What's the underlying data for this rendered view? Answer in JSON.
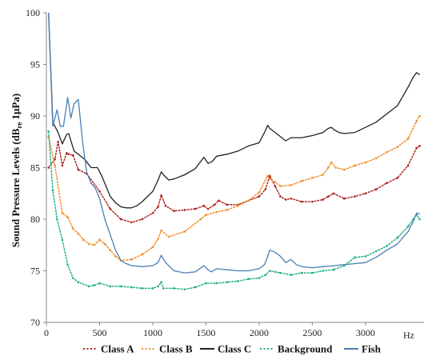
{
  "chart_data": {
    "type": "line",
    "title": "",
    "xlabel": "Hz",
    "ylabel": "Sound Pressure Levels (dB",
    "ylabel_sub": "re",
    "ylabel_tail": " 1μPa)",
    "xlim": [
      0,
      3550
    ],
    "ylim": [
      70,
      100
    ],
    "xticks": [
      0,
      500,
      1000,
      1500,
      2000,
      2500,
      3000
    ],
    "yticks": [
      70,
      75,
      80,
      85,
      90,
      95,
      100
    ],
    "grid": false,
    "legend_position": "bottom",
    "series": [
      {
        "name": "Class A",
        "color": "#b22222",
        "style": "dotted",
        "x": [
          20,
          80,
          110,
          150,
          190,
          210,
          250,
          300,
          380,
          500,
          600,
          700,
          800,
          900,
          1000,
          1050,
          1080,
          1120,
          1200,
          1300,
          1400,
          1480,
          1520,
          1580,
          1620,
          1700,
          1800,
          1900,
          2000,
          2060,
          2100,
          2150,
          2200,
          2250,
          2300,
          2400,
          2500,
          2600,
          2650,
          2700,
          2800,
          2900,
          3000,
          3100,
          3200,
          3300,
          3400,
          3480,
          3510
        ],
        "y": [
          85.0,
          85.8,
          87.5,
          85.2,
          86.4,
          86.3,
          86.2,
          84.8,
          84.4,
          82.7,
          81.0,
          80.0,
          79.7,
          80.0,
          80.6,
          81.2,
          82.3,
          81.3,
          80.8,
          80.9,
          81.0,
          81.3,
          81.0,
          81.4,
          81.8,
          81.4,
          81.4,
          81.8,
          82.2,
          82.9,
          84.2,
          83.2,
          82.2,
          81.9,
          82.0,
          81.7,
          81.7,
          81.9,
          82.2,
          82.5,
          82.0,
          82.2,
          82.5,
          82.9,
          83.5,
          84.0,
          85.2,
          86.9,
          87.1
        ]
      },
      {
        "name": "Class B",
        "color": "#f28c28",
        "style": "dotted",
        "x": [
          20,
          80,
          150,
          200,
          250,
          300,
          350,
          400,
          450,
          500,
          550,
          600,
          650,
          700,
          800,
          900,
          1000,
          1050,
          1080,
          1150,
          1300,
          1450,
          1500,
          1600,
          1700,
          1800,
          1900,
          2000,
          2080,
          2100,
          2150,
          2200,
          2300,
          2400,
          2500,
          2600,
          2650,
          2680,
          2720,
          2800,
          2900,
          3000,
          3100,
          3200,
          3300,
          3400,
          3480,
          3510
        ],
        "y": [
          88.0,
          85.2,
          80.6,
          80.2,
          79.1,
          78.6,
          78.0,
          77.6,
          77.5,
          78.0,
          77.6,
          77.0,
          76.4,
          76.0,
          76.1,
          76.6,
          77.3,
          78.1,
          78.9,
          78.3,
          78.8,
          80.0,
          80.4,
          80.7,
          80.9,
          81.3,
          81.8,
          82.6,
          84.2,
          83.9,
          83.6,
          83.2,
          83.3,
          83.7,
          84.0,
          84.3,
          85.0,
          85.5,
          85.0,
          84.8,
          85.2,
          85.5,
          85.9,
          86.5,
          87.0,
          87.8,
          89.5,
          90.0
        ]
      },
      {
        "name": "Class C",
        "color": "#222222",
        "style": "solid",
        "x": [
          20,
          60,
          110,
          150,
          190,
          210,
          260,
          300,
          360,
          420,
          480,
          520,
          560,
          600,
          650,
          700,
          750,
          800,
          850,
          900,
          950,
          1000,
          1050,
          1080,
          1100,
          1150,
          1200,
          1300,
          1400,
          1480,
          1520,
          1560,
          1600,
          1700,
          1800,
          1900,
          2000,
          2050,
          2080,
          2100,
          2150,
          2200,
          2250,
          2300,
          2400,
          2500,
          2600,
          2650,
          2680,
          2700,
          2750,
          2800,
          2900,
          3000,
          3100,
          3200,
          3300,
          3400,
          3450,
          3480,
          3510
        ],
        "y": [
          100.0,
          89.4,
          88.4,
          87.3,
          88.2,
          88.3,
          86.6,
          86.3,
          85.8,
          85.0,
          85.0,
          84.2,
          83.2,
          82.2,
          81.6,
          81.2,
          81.1,
          81.1,
          81.3,
          81.7,
          82.2,
          82.7,
          83.8,
          84.6,
          84.3,
          83.8,
          83.9,
          84.3,
          84.9,
          86.0,
          85.4,
          85.6,
          86.1,
          86.3,
          86.6,
          87.1,
          87.4,
          88.4,
          89.1,
          88.8,
          88.4,
          88.0,
          87.6,
          87.9,
          87.9,
          88.1,
          88.4,
          88.8,
          88.9,
          88.7,
          88.4,
          88.3,
          88.4,
          88.9,
          89.4,
          90.2,
          91.0,
          92.8,
          93.8,
          94.2,
          94.0
        ]
      },
      {
        "name": "Background",
        "color": "#20b08a",
        "style": "dotted",
        "x": [
          20,
          60,
          100,
          150,
          200,
          250,
          300,
          400,
          450,
          500,
          600,
          700,
          800,
          900,
          1000,
          1050,
          1080,
          1100,
          1200,
          1300,
          1400,
          1500,
          1600,
          1700,
          1800,
          1900,
          2000,
          2060,
          2100,
          2150,
          2200,
          2300,
          2400,
          2500,
          2600,
          2700,
          2800,
          2900,
          3000,
          3100,
          3200,
          3300,
          3400,
          3450,
          3480,
          3510
        ],
        "y": [
          88.5,
          82.8,
          80.0,
          78.0,
          75.6,
          74.3,
          73.9,
          73.5,
          73.6,
          73.8,
          73.5,
          73.5,
          73.4,
          73.3,
          73.3,
          73.5,
          73.9,
          73.3,
          73.3,
          73.2,
          73.4,
          73.8,
          73.8,
          73.9,
          74.0,
          74.2,
          74.3,
          74.6,
          75.0,
          74.9,
          74.8,
          74.6,
          74.8,
          74.8,
          75.0,
          75.1,
          75.5,
          76.3,
          76.4,
          76.9,
          77.4,
          78.2,
          79.3,
          80.0,
          80.4,
          80.0
        ]
      },
      {
        "name": "Fish",
        "color": "#4a7fb5",
        "style": "solid",
        "x": [
          20,
          60,
          100,
          130,
          160,
          200,
          230,
          260,
          300,
          340,
          380,
          420,
          460,
          500,
          550,
          600,
          650,
          700,
          750,
          800,
          900,
          1000,
          1050,
          1080,
          1120,
          1200,
          1300,
          1400,
          1480,
          1520,
          1550,
          1600,
          1700,
          1800,
          1900,
          2000,
          2050,
          2080,
          2100,
          2150,
          2200,
          2250,
          2300,
          2350,
          2400,
          2500,
          2600,
          2700,
          2800,
          2900,
          3000,
          3100,
          3200,
          3300,
          3400,
          3450,
          3480,
          3510
        ],
        "y": [
          100.0,
          89.0,
          90.6,
          89.0,
          89.0,
          91.8,
          89.8,
          91.2,
          91.6,
          87.5,
          84.5,
          83.5,
          83.0,
          82.0,
          80.0,
          78.5,
          77.0,
          76.0,
          75.7,
          75.5,
          75.4,
          75.5,
          75.8,
          76.5,
          75.8,
          75.0,
          74.8,
          74.9,
          75.5,
          75.1,
          74.9,
          75.2,
          75.1,
          75.0,
          75.0,
          75.2,
          75.6,
          76.4,
          77.0,
          76.8,
          76.4,
          75.8,
          76.1,
          75.6,
          75.4,
          75.3,
          75.4,
          75.5,
          75.6,
          75.7,
          75.8,
          76.3,
          77.0,
          77.6,
          78.8,
          79.8,
          80.6,
          80.5
        ]
      }
    ]
  }
}
